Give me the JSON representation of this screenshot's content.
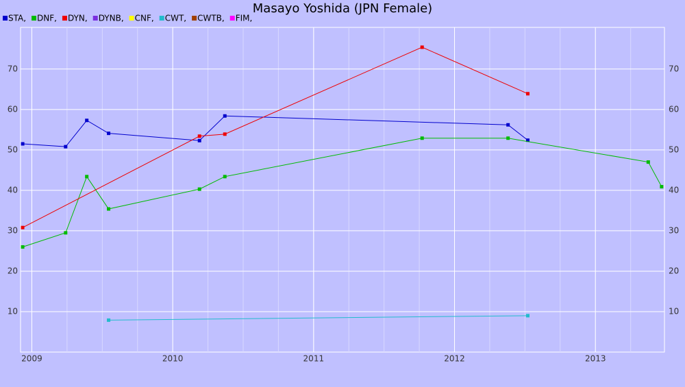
{
  "chart_data": {
    "type": "line",
    "title": "Masayo Yoshida (JPN Female)",
    "xlim": [
      2008.92,
      2013.49
    ],
    "xticks": [
      2009,
      2010,
      2011,
      2012,
      2013
    ],
    "ylim": [
      0,
      80.3
    ],
    "yticks": [
      10,
      20,
      30,
      40,
      50,
      60,
      70
    ],
    "grid": true,
    "series": [
      {
        "name": "STA,",
        "color": "#0000cc",
        "x": [
          2008.935,
          2009.24,
          2009.39,
          2009.545,
          2010.19,
          2010.37,
          2012.38,
          2012.52
        ],
        "values": [
          51.5,
          50.8,
          57.3,
          54.1,
          52.3,
          58.4,
          56.2,
          52.4
        ]
      },
      {
        "name": "DNF,",
        "color": "#00bb00",
        "x": [
          2008.935,
          2009.24,
          2009.39,
          2009.545,
          2010.19,
          2010.37,
          2011.77,
          2012.38,
          2013.375,
          2013.47
        ],
        "values": [
          26,
          29.5,
          43.4,
          35.4,
          40.3,
          43.4,
          52.9,
          52.9,
          47,
          40.9
        ]
      },
      {
        "name": "DYN,",
        "color": "#ee0000",
        "x": [
          2008.935,
          2010.19,
          2010.37,
          2011.77,
          2012.52
        ],
        "values": [
          30.8,
          53.4,
          53.9,
          75.4,
          63.9
        ]
      },
      {
        "name": "DYNB,",
        "color": "#7a2fe0",
        "x": [],
        "values": []
      },
      {
        "name": "CNF,",
        "color": "#ffff00",
        "x": [],
        "values": []
      },
      {
        "name": "CWT,",
        "color": "#22bbcc",
        "x": [
          2009.545,
          2012.52
        ],
        "values": [
          7.9,
          9
        ]
      },
      {
        "name": "CWTB,",
        "color": "#a04000",
        "x": [],
        "values": []
      },
      {
        "name": "FIM,",
        "color": "#ff00ff",
        "x": [],
        "values": []
      }
    ]
  }
}
